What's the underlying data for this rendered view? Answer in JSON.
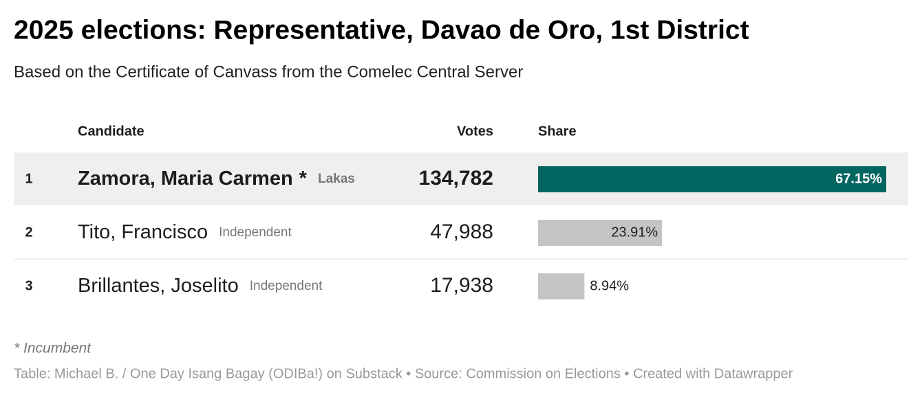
{
  "header": {
    "title": "2025 elections: Representative, Davao de Oro, 1st District",
    "subtitle": "Based on the Certificate of Canvass from the Comelec Central Server"
  },
  "table": {
    "columns": [
      "Candidate",
      "Votes",
      "Share"
    ],
    "rows": [
      {
        "rank": "1",
        "name": "Zamora, Maria Carmen",
        "marker": "*",
        "party": "Lakas",
        "votes": "134,782",
        "share": {
          "value": 67.15,
          "label": "67.15%"
        }
      },
      {
        "rank": "2",
        "name": "Tito, Francisco",
        "party": "Independent",
        "votes": "47,988",
        "share": {
          "value": 23.91,
          "label": "23.91%"
        }
      },
      {
        "rank": "3",
        "name": "Brillantes, Joselito",
        "party": "Independent",
        "votes": "17,938",
        "share": {
          "value": 8.94,
          "label": "8.94%"
        }
      }
    ]
  },
  "footnote": "* Incumbent",
  "footer": "Table: Michael B. / One Day Isang Bagay (ODIBa!) on Substack • Source: Commission on Elections • Created with Datawrapper"
}
